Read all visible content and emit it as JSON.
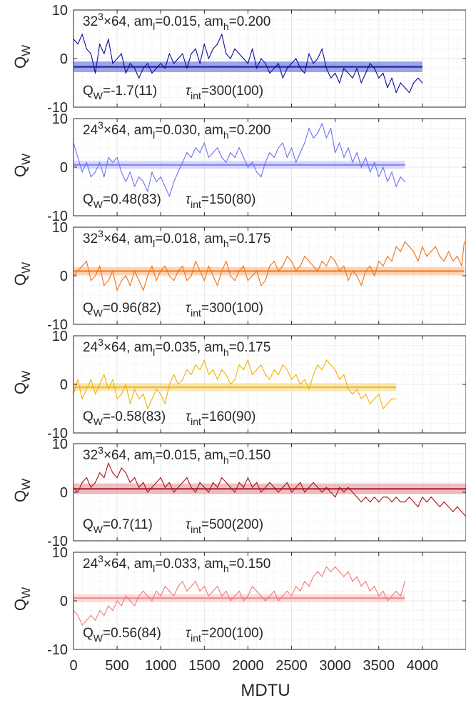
{
  "figure": {
    "xlabel": "MDTU",
    "x_ticks": [
      0,
      500,
      1000,
      1500,
      2000,
      2500,
      3000,
      3500,
      4000
    ],
    "y_ticks": [
      -10,
      0,
      10
    ]
  },
  "chart_data": [
    {
      "type": "line",
      "label": {
        "lat": "32",
        "exp": "3",
        "rest": "×64, am",
        "sub_l": "l",
        "mid": "=0.015, am",
        "sub_h": "h",
        "end": "=0.200"
      },
      "ylabel": {
        "main": "Q",
        "sub": "W"
      },
      "stat": {
        "q_main": "Q",
        "q_sub": "W",
        "q_value": "=-1.7(11)",
        "tau_main": "τ",
        "tau_sub": "int",
        "tau_value": "=300(100)"
      },
      "color": "#0b0b9a",
      "band_color": "#4a5bd0",
      "mean": -1.7,
      "err": 1.1,
      "xmax": 4000,
      "ylim": [
        -10,
        10
      ],
      "xlim": [
        0,
        4500
      ],
      "x": [
        0,
        50,
        100,
        150,
        200,
        250,
        300,
        350,
        400,
        450,
        500,
        550,
        600,
        650,
        700,
        750,
        800,
        850,
        900,
        950,
        1000,
        1050,
        1100,
        1150,
        1200,
        1250,
        1300,
        1350,
        1400,
        1450,
        1500,
        1550,
        1600,
        1650,
        1700,
        1750,
        1800,
        1850,
        1900,
        1950,
        2000,
        2050,
        2100,
        2150,
        2200,
        2250,
        2300,
        2350,
        2400,
        2450,
        2500,
        2550,
        2600,
        2650,
        2700,
        2750,
        2800,
        2850,
        2900,
        2950,
        3000,
        3050,
        3100,
        3150,
        3200,
        3250,
        3300,
        3350,
        3400,
        3450,
        3500,
        3550,
        3600,
        3650,
        3700,
        3750,
        3800,
        3850,
        3900,
        3950,
        4000
      ],
      "values": [
        4,
        3,
        5,
        2,
        1,
        -3,
        3,
        1,
        4,
        -1,
        0,
        1,
        -3,
        -1,
        -2,
        -4,
        -2,
        -1,
        -3,
        -2,
        -1,
        -2,
        1,
        -1,
        0,
        1,
        -2,
        1,
        2,
        -1,
        3,
        0,
        2,
        3,
        5,
        1,
        0,
        2,
        1,
        0,
        -1,
        2,
        -2,
        0,
        -1,
        -3,
        -2,
        -1,
        -4,
        -2,
        -1,
        0,
        -2,
        -3,
        1,
        -1,
        0,
        2,
        -2,
        -4,
        -3,
        -5,
        -2,
        -3,
        -4,
        -2,
        -5,
        -3,
        -1,
        -2,
        -4,
        -3,
        -6,
        -4,
        -7,
        -5,
        -6,
        -7,
        -5,
        -4,
        -5
      ]
    },
    {
      "type": "line",
      "label": {
        "lat": "24",
        "exp": "3",
        "rest": "×64, am",
        "sub_l": "l",
        "mid": "=0.030, am",
        "sub_h": "h",
        "end": "=0.200"
      },
      "ylabel": {
        "main": "Q",
        "sub": "W"
      },
      "stat": {
        "q_main": "Q",
        "q_sub": "W",
        "q_value": "=0.48(83)",
        "tau_main": "τ",
        "tau_sub": "int",
        "tau_value": "=150(80)"
      },
      "color": "#6f6ff2",
      "band_color": "#b9beff",
      "mean": 0.48,
      "err": 0.83,
      "xmax": 3800,
      "ylim": [
        -10,
        10
      ],
      "xlim": [
        0,
        4500
      ],
      "x": [
        0,
        50,
        100,
        150,
        200,
        250,
        300,
        350,
        400,
        450,
        500,
        550,
        600,
        650,
        700,
        750,
        800,
        850,
        900,
        950,
        1000,
        1050,
        1100,
        1150,
        1200,
        1250,
        1300,
        1350,
        1400,
        1450,
        1500,
        1550,
        1600,
        1650,
        1700,
        1750,
        1800,
        1850,
        1900,
        1950,
        2000,
        2050,
        2100,
        2150,
        2200,
        2250,
        2300,
        2350,
        2400,
        2450,
        2500,
        2550,
        2600,
        2650,
        2700,
        2750,
        2800,
        2850,
        2900,
        2950,
        3000,
        3050,
        3100,
        3150,
        3200,
        3250,
        3300,
        3350,
        3400,
        3450,
        3500,
        3550,
        3600,
        3650,
        3700,
        3750,
        3800
      ],
      "values": [
        5,
        2,
        -1,
        1,
        -2,
        -1,
        1,
        -2,
        2,
        1,
        2,
        -1,
        -3,
        -1,
        -4,
        -2,
        -3,
        -5,
        -1,
        -3,
        -2,
        -4,
        -6,
        -3,
        -1,
        1,
        3,
        2,
        4,
        3,
        5,
        2,
        3,
        4,
        2,
        1,
        3,
        2,
        4,
        2,
        0,
        1,
        -1,
        -2,
        1,
        3,
        2,
        4,
        5,
        2,
        4,
        1,
        3,
        5,
        8,
        6,
        7,
        9,
        6,
        8,
        3,
        5,
        2,
        4,
        1,
        3,
        0,
        2,
        -1,
        1,
        -2,
        0,
        -3,
        -1,
        -4,
        -2,
        -3
      ]
    },
    {
      "type": "line",
      "label": {
        "lat": "32",
        "exp": "3",
        "rest": "×64, am",
        "sub_l": "l",
        "mid": "=0.018, am",
        "sub_h": "h",
        "end": "=0.175"
      },
      "ylabel": {
        "main": "Q",
        "sub": "W"
      },
      "stat": {
        "q_main": "Q",
        "q_sub": "W",
        "q_value": "=0.96(82)",
        "tau_main": "τ",
        "tau_sub": "int",
        "tau_value": "=300(100)"
      },
      "color": "#f07012",
      "band_color": "#f9b27c",
      "mean": 0.96,
      "err": 0.82,
      "xmax": 4480,
      "ylim": [
        -10,
        10
      ],
      "xlim": [
        0,
        4500
      ],
      "x": [
        0,
        50,
        100,
        150,
        200,
        250,
        300,
        350,
        400,
        450,
        500,
        550,
        600,
        650,
        700,
        750,
        800,
        850,
        900,
        950,
        1000,
        1050,
        1100,
        1150,
        1200,
        1250,
        1300,
        1350,
        1400,
        1450,
        1500,
        1550,
        1600,
        1650,
        1700,
        1750,
        1800,
        1850,
        1900,
        1950,
        2000,
        2050,
        2100,
        2150,
        2200,
        2250,
        2300,
        2350,
        2400,
        2450,
        2500,
        2550,
        2600,
        2650,
        2700,
        2750,
        2800,
        2850,
        2900,
        2950,
        3000,
        3050,
        3100,
        3150,
        3200,
        3250,
        3300,
        3350,
        3400,
        3450,
        3500,
        3550,
        3600,
        3650,
        3700,
        3750,
        3800,
        3850,
        3900,
        3950,
        4000,
        4050,
        4100,
        4150,
        4200,
        4250,
        4300,
        4350,
        4400,
        4450,
        4480
      ],
      "values": [
        0,
        1,
        2,
        3,
        -1,
        0,
        2,
        -2,
        -1,
        1,
        -3,
        -1,
        0,
        -2,
        1,
        -1,
        -3,
        0,
        2,
        -1,
        1,
        2,
        0,
        -1,
        1,
        2,
        -1,
        0,
        3,
        1,
        -1,
        2,
        0,
        -2,
        1,
        3,
        0,
        -1,
        1,
        2,
        -1,
        0,
        1,
        -2,
        -1,
        2,
        3,
        1,
        2,
        4,
        3,
        1,
        2,
        4,
        3,
        2,
        1,
        3,
        2,
        4,
        3,
        1,
        2,
        -1,
        1,
        0,
        -2,
        1,
        2,
        0,
        3,
        2,
        4,
        3,
        6,
        5,
        7,
        6,
        5,
        3,
        6,
        4,
        5,
        6,
        4,
        3,
        5,
        3,
        4,
        2,
        7
      ]
    },
    {
      "type": "line",
      "label": {
        "lat": "24",
        "exp": "3",
        "rest": "×64, am",
        "sub_l": "l",
        "mid": "=0.035, am",
        "sub_h": "h",
        "end": "=0.175"
      },
      "ylabel": {
        "main": "Q",
        "sub": "W"
      },
      "stat": {
        "q_main": "Q",
        "q_sub": "W",
        "q_value": "=-0.58(83)",
        "tau_main": "τ",
        "tau_sub": "int",
        "tau_value": "=160(90)"
      },
      "color": "#f0b100",
      "band_color": "#f8d77a",
      "mean": -0.58,
      "err": 0.83,
      "xmax": 3700,
      "ylim": [
        -10,
        10
      ],
      "xlim": [
        0,
        4500
      ],
      "x": [
        0,
        50,
        100,
        150,
        200,
        250,
        300,
        350,
        400,
        450,
        500,
        550,
        600,
        650,
        700,
        750,
        800,
        850,
        900,
        950,
        1000,
        1050,
        1100,
        1150,
        1200,
        1250,
        1300,
        1350,
        1400,
        1450,
        1500,
        1550,
        1600,
        1650,
        1700,
        1750,
        1800,
        1850,
        1900,
        1950,
        2000,
        2050,
        2100,
        2150,
        2200,
        2250,
        2300,
        2350,
        2400,
        2450,
        2500,
        2550,
        2600,
        2650,
        2700,
        2750,
        2800,
        2850,
        2900,
        2950,
        3000,
        3050,
        3100,
        3150,
        3200,
        3250,
        3300,
        3350,
        3400,
        3450,
        3500,
        3550,
        3600,
        3650,
        3700
      ],
      "values": [
        -2,
        1,
        -3,
        -1,
        1,
        -2,
        0,
        2,
        -1,
        1,
        -3,
        -2,
        0,
        -4,
        -1,
        -3,
        -2,
        -5,
        -3,
        -1,
        -2,
        -4,
        0,
        2,
        0,
        1,
        3,
        2,
        4,
        3,
        5,
        2,
        3,
        1,
        3,
        2,
        0,
        1,
        4,
        3,
        5,
        2,
        3,
        4,
        2,
        1,
        3,
        2,
        4,
        3,
        1,
        2,
        0,
        1,
        -1,
        2,
        4,
        3,
        5,
        4,
        3,
        1,
        2,
        -1,
        -2,
        -1,
        -3,
        -2,
        -4,
        -3,
        -2,
        -5,
        -4,
        -3,
        -3
      ]
    },
    {
      "type": "line",
      "label": {
        "lat": "32",
        "exp": "3",
        "rest": "×64, am",
        "sub_l": "l",
        "mid": "=0.015, am",
        "sub_h": "h",
        "end": "=0.150"
      },
      "ylabel": {
        "main": "Q",
        "sub": "W"
      },
      "stat": {
        "q_main": "Q",
        "q_sub": "W",
        "q_value": "=0.7(11)",
        "tau_main": "τ",
        "tau_sub": "int",
        "tau_value": "=500(200)"
      },
      "color": "#a8141e",
      "band_color": "#dd8a90",
      "mean": 0.7,
      "err": 1.1,
      "xmax": 4500,
      "ylim": [
        -10,
        10
      ],
      "xlim": [
        0,
        4500
      ],
      "x": [
        0,
        50,
        100,
        150,
        200,
        250,
        300,
        350,
        400,
        450,
        500,
        550,
        600,
        650,
        700,
        750,
        800,
        850,
        900,
        950,
        1000,
        1050,
        1100,
        1150,
        1200,
        1250,
        1300,
        1350,
        1400,
        1450,
        1500,
        1550,
        1600,
        1650,
        1700,
        1750,
        1800,
        1850,
        1900,
        1950,
        2000,
        2050,
        2100,
        2150,
        2200,
        2250,
        2300,
        2350,
        2400,
        2450,
        2500,
        2550,
        2600,
        2650,
        2700,
        2750,
        2800,
        2850,
        2900,
        2950,
        3000,
        3050,
        3100,
        3150,
        3200,
        3250,
        3300,
        3350,
        3400,
        3450,
        3500,
        3550,
        3600,
        3650,
        3700,
        3750,
        3800,
        3850,
        3900,
        3950,
        4000,
        4050,
        4100,
        4150,
        4200,
        4250,
        4300,
        4350,
        4400,
        4450,
        4500
      ],
      "values": [
        1,
        0,
        2,
        3,
        1,
        2,
        4,
        3,
        6,
        4,
        3,
        5,
        4,
        2,
        3,
        1,
        2,
        0,
        1,
        2,
        3,
        1,
        2,
        0,
        1,
        2,
        3,
        1,
        0,
        2,
        1,
        0,
        2,
        1,
        3,
        2,
        1,
        0,
        2,
        1,
        3,
        1,
        2,
        0,
        1,
        2,
        1,
        0,
        1,
        2,
        0,
        1,
        2,
        0,
        1,
        2,
        1,
        0,
        1,
        0,
        -1,
        1,
        0,
        1,
        0,
        -1,
        -2,
        -1,
        -2,
        -1,
        -2,
        -1,
        -1,
        -2,
        -1,
        -2,
        -2,
        -1,
        -2,
        -3,
        -1,
        -2,
        -1,
        -2,
        -3,
        -2,
        -3,
        -4,
        -3,
        -4,
        -5
      ]
    },
    {
      "type": "line",
      "label": {
        "lat": "24",
        "exp": "3",
        "rest": "×64, am",
        "sub_l": "l",
        "mid": "=0.033, am",
        "sub_h": "h",
        "end": "=0.150"
      },
      "ylabel": {
        "main": "Q",
        "sub": "W"
      },
      "stat": {
        "q_main": "Q",
        "q_sub": "W",
        "q_value": "=0.56(84)",
        "tau_main": "τ",
        "tau_sub": "int",
        "tau_value": "=200(100)"
      },
      "color": "#f07a78",
      "band_color": "#f9c3c2",
      "mean": 0.56,
      "err": 0.84,
      "xmax": 3800,
      "ylim": [
        -10,
        10
      ],
      "xlim": [
        0,
        4500
      ],
      "x": [
        0,
        50,
        100,
        150,
        200,
        250,
        300,
        350,
        400,
        450,
        500,
        550,
        600,
        650,
        700,
        750,
        800,
        850,
        900,
        950,
        1000,
        1050,
        1100,
        1150,
        1200,
        1250,
        1300,
        1350,
        1400,
        1450,
        1500,
        1550,
        1600,
        1650,
        1700,
        1750,
        1800,
        1850,
        1900,
        1950,
        2000,
        2050,
        2100,
        2150,
        2200,
        2250,
        2300,
        2350,
        2400,
        2450,
        2500,
        2550,
        2600,
        2650,
        2700,
        2750,
        2800,
        2850,
        2900,
        2950,
        3000,
        3050,
        3100,
        3150,
        3200,
        3250,
        3300,
        3350,
        3400,
        3450,
        3500,
        3550,
        3600,
        3650,
        3700,
        3750,
        3800
      ],
      "values": [
        -2,
        -3,
        -5,
        -4,
        -3,
        -4,
        -2,
        -3,
        -1,
        -2,
        0,
        -1,
        1,
        0,
        -1,
        1,
        2,
        1,
        0,
        2,
        1,
        3,
        2,
        1,
        3,
        4,
        2,
        3,
        4,
        2,
        3,
        1,
        2,
        3,
        1,
        2,
        0,
        1,
        2,
        0,
        1,
        3,
        2,
        1,
        0,
        1,
        2,
        0,
        1,
        2,
        1,
        3,
        2,
        4,
        3,
        5,
        6,
        5,
        7,
        6,
        7,
        6,
        5,
        6,
        4,
        5,
        3,
        4,
        2,
        3,
        1,
        2,
        0,
        1,
        2,
        1,
        4
      ]
    }
  ]
}
